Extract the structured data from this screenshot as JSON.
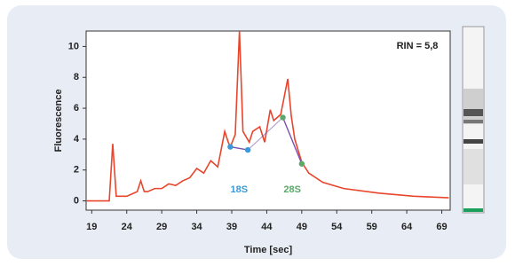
{
  "chart_data": {
    "type": "line",
    "xlabel": "Time [sec]",
    "ylabel": "Fluorescence",
    "annotation": "RIN = 5,8",
    "xlim": [
      18.2,
      70.2
    ],
    "ylim": [
      -0.6,
      11
    ],
    "xticks": [
      19,
      24,
      29,
      34,
      39,
      44,
      49,
      54,
      59,
      64,
      69
    ],
    "yticks": [
      0,
      2,
      4,
      6,
      8,
      10
    ],
    "x": [
      18.2,
      21.5,
      22,
      22.5,
      24,
      25.5,
      26,
      26.5,
      27,
      28,
      29,
      30,
      31,
      32,
      33,
      34,
      35,
      36,
      37,
      38,
      38.5,
      38.8,
      39.5,
      40.1,
      40.6,
      41.5,
      42,
      43,
      43.7,
      44.5,
      45,
      46,
      47,
      47.5,
      48,
      49,
      50,
      52,
      55,
      60,
      65,
      70
    ],
    "series": [
      {
        "color": "#e8452c",
        "values": [
          0,
          0,
          3.7,
          0.3,
          0.3,
          0.6,
          1.3,
          0.6,
          0.6,
          0.8,
          0.8,
          1.1,
          1.0,
          1.3,
          1.5,
          2.1,
          1.8,
          2.6,
          2.2,
          4.5,
          3.8,
          3.5,
          4.3,
          11,
          4.5,
          3.8,
          4.5,
          4.8,
          3.8,
          5.9,
          5.2,
          5.6,
          7.9,
          5.5,
          4.0,
          2.5,
          1.8,
          1.2,
          0.8,
          0.5,
          0.3,
          0.2
        ]
      }
    ],
    "peaks": [
      {
        "label": "18S",
        "color": "#3a9ad9",
        "x": [
          38.8,
          41.3
        ],
        "y": [
          3.5,
          3.3
        ]
      },
      {
        "label": "28S",
        "color": "#5aa86a",
        "x": [
          46.3,
          49
        ],
        "y": [
          5.4,
          2.4
        ]
      }
    ],
    "peak_link_color": "#7a4fb0"
  }
}
